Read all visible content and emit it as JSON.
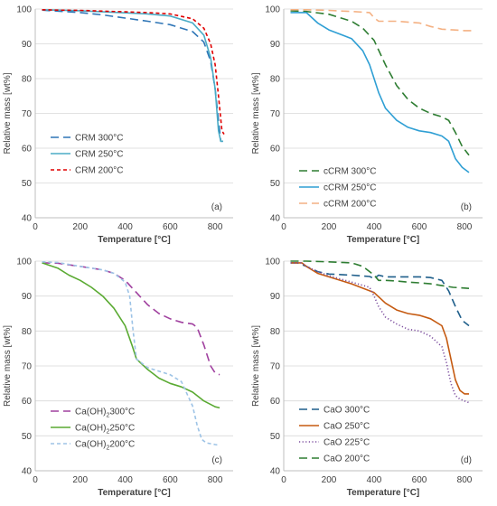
{
  "chart_data": [
    {
      "type": "line",
      "panel_label": "(a)",
      "xlabel": "Temperature [°C]",
      "ylabel": "Relative mass [wt%]",
      "xlim": [
        0,
        880
      ],
      "ylim": [
        40,
        100
      ],
      "xticks": [
        0,
        200,
        400,
        600,
        800
      ],
      "yticks": [
        40,
        50,
        60,
        70,
        80,
        90,
        100
      ],
      "grid": "horizontal",
      "legend_position": "bottom-left",
      "series": [
        {
          "name": "CRM 300°C",
          "color": "#2e75b6",
          "dash": "long-dash",
          "x": [
            30,
            100,
            200,
            300,
            400,
            500,
            600,
            700,
            750,
            780,
            800,
            815,
            825,
            835
          ],
          "y": [
            99.7,
            99.4,
            99.0,
            98.3,
            97.4,
            96.5,
            95.5,
            93.5,
            90.5,
            85,
            77,
            68,
            62,
            62
          ]
        },
        {
          "name": "CRM 250°C",
          "color": "#4bacc6",
          "dash": "solid",
          "x": [
            30,
            100,
            200,
            300,
            400,
            500,
            600,
            700,
            750,
            780,
            800,
            815,
            825,
            835
          ],
          "y": [
            99.8,
            99.7,
            99.5,
            99.2,
            98.9,
            98.6,
            98.0,
            96.0,
            92.5,
            86,
            77,
            65,
            62,
            62
          ]
        },
        {
          "name": "CRM 200°C",
          "color": "#e00000",
          "dash": "short-dash",
          "x": [
            30,
            100,
            200,
            300,
            400,
            500,
            600,
            700,
            750,
            780,
            800,
            815,
            830,
            840
          ],
          "y": [
            99.8,
            99.7,
            99.6,
            99.4,
            99.2,
            99.0,
            98.6,
            97.2,
            94.5,
            90,
            84,
            75,
            65,
            64
          ]
        }
      ]
    },
    {
      "type": "line",
      "panel_label": "(b)",
      "xlabel": "Temperature [°C]",
      "ylabel": "Relative mass [wt%]",
      "xlim": [
        0,
        880
      ],
      "ylim": [
        40,
        100
      ],
      "xticks": [
        0,
        200,
        400,
        600,
        800
      ],
      "yticks": [
        40,
        50,
        60,
        70,
        80,
        90,
        100
      ],
      "grid": "horizontal",
      "legend_position": "bottom-left",
      "series": [
        {
          "name": "cCRM 300°C",
          "color": "#2e7d32",
          "dash": "long-dash",
          "x": [
            30,
            100,
            200,
            300,
            350,
            400,
            450,
            500,
            550,
            600,
            650,
            700,
            730,
            760,
            790,
            820
          ],
          "y": [
            99.5,
            99.3,
            98.5,
            96.5,
            94.5,
            91,
            84,
            78,
            74,
            71.5,
            70,
            69,
            68,
            64.5,
            60.5,
            58
          ]
        },
        {
          "name": "cCRM 250°C",
          "color": "#2f9fd4",
          "dash": "solid",
          "x": [
            30,
            100,
            150,
            200,
            300,
            350,
            380,
            400,
            420,
            450,
            500,
            550,
            600,
            650,
            700,
            730,
            760,
            790,
            820
          ],
          "y": [
            99,
            99,
            96,
            94,
            91.5,
            88,
            84,
            80,
            76,
            71.5,
            68,
            66,
            65,
            64.5,
            63.5,
            62,
            57,
            54.5,
            53
          ]
        },
        {
          "name": "cCRM 200°C",
          "color": "#f4b183",
          "dash": "long-dash",
          "x": [
            30,
            100,
            200,
            300,
            380,
            400,
            420,
            500,
            600,
            650,
            700,
            750,
            800,
            830
          ],
          "y": [
            99.8,
            99.8,
            99.6,
            99.3,
            99.0,
            97.5,
            96.5,
            96.5,
            96,
            95,
            94.2,
            94,
            93.8,
            93.8
          ]
        }
      ]
    },
    {
      "type": "line",
      "panel_label": "(c)",
      "xlabel": "Temperature [°C]",
      "ylabel": "Relative mass [wt%]",
      "xlim": [
        0,
        880
      ],
      "ylim": [
        40,
        100
      ],
      "xticks": [
        0,
        200,
        400,
        600,
        800
      ],
      "yticks": [
        40,
        50,
        60,
        70,
        80,
        90,
        100
      ],
      "grid": "horizontal",
      "legend_position": "bottom-left",
      "series": [
        {
          "name": "Ca(OH)",
          "name_sub": "2",
          "name_suffix": "300°C",
          "color": "#a0409f",
          "dash": "long-dash",
          "x": [
            30,
            100,
            200,
            300,
            350,
            400,
            450,
            500,
            550,
            600,
            650,
            700,
            720,
            750,
            780,
            800,
            820
          ],
          "y": [
            99.5,
            99.4,
            98.5,
            97.5,
            96.5,
            94.5,
            91,
            87.5,
            85,
            83.5,
            82.5,
            82,
            81,
            76,
            70,
            68,
            67.5
          ]
        },
        {
          "name": "Ca(OH)",
          "name_sub": "2",
          "name_suffix": "250°C",
          "color": "#5aaa32",
          "dash": "solid",
          "x": [
            30,
            100,
            150,
            200,
            250,
            300,
            350,
            400,
            430,
            450,
            500,
            550,
            600,
            650,
            700,
            750,
            800,
            820
          ],
          "y": [
            99.5,
            98,
            96,
            94.5,
            92.5,
            90,
            86.5,
            81.5,
            76,
            72,
            69,
            66.5,
            65,
            64,
            62.5,
            60,
            58.3,
            58
          ]
        },
        {
          "name": "Ca(OH)",
          "name_sub": "2",
          "name_suffix": "200°C",
          "color": "#9dc3e6",
          "dash": "short-dash",
          "x": [
            30,
            100,
            200,
            300,
            350,
            400,
            420,
            435,
            450,
            500,
            550,
            600,
            650,
            700,
            720,
            740,
            760,
            800,
            820
          ],
          "y": [
            99.8,
            99.6,
            98.5,
            97.5,
            96.5,
            94,
            90,
            80,
            72,
            69.5,
            68.5,
            67.5,
            65.5,
            58.5,
            53,
            49,
            48,
            47.5,
            47.3
          ]
        }
      ]
    },
    {
      "type": "line",
      "panel_label": "(d)",
      "xlabel": "Temperature [°C]",
      "ylabel": "Relative mass [wt%]",
      "xlim": [
        0,
        880
      ],
      "ylim": [
        40,
        100
      ],
      "xticks": [
        0,
        200,
        400,
        600,
        800
      ],
      "yticks": [
        40,
        50,
        60,
        70,
        80,
        90,
        100
      ],
      "grid": "horizontal",
      "legend_position": "bottom-left",
      "series": [
        {
          "name": "CaO 300°C",
          "color": "#1f5f8b",
          "dash": "long-dash",
          "x": [
            30,
            60,
            100,
            150,
            200,
            300,
            380,
            400,
            420,
            450,
            500,
            600,
            650,
            700,
            730,
            760,
            790,
            820
          ],
          "y": [
            99.5,
            99.5,
            98.5,
            97,
            96.3,
            96,
            95.6,
            95,
            96,
            95.5,
            95.5,
            95.5,
            95.3,
            94.5,
            91.5,
            87,
            83,
            81.5
          ]
        },
        {
          "name": "CaO 250°C",
          "color": "#c55a11",
          "dash": "solid",
          "x": [
            30,
            80,
            100,
            150,
            200,
            300,
            400,
            450,
            500,
            550,
            600,
            650,
            700,
            720,
            740,
            760,
            780,
            800,
            820
          ],
          "y": [
            99.5,
            99.5,
            98.5,
            96.5,
            95.5,
            93.5,
            91,
            88,
            86,
            85,
            84.5,
            83.5,
            81.5,
            78,
            72,
            66,
            63,
            62,
            62
          ]
        },
        {
          "name": "CaO 225°C",
          "color": "#7c4d9e",
          "dash": "dotted",
          "x": [
            30,
            80,
            100,
            150,
            200,
            300,
            380,
            400,
            420,
            450,
            500,
            550,
            600,
            650,
            700,
            720,
            740,
            760,
            780,
            800,
            820
          ],
          "y": [
            99.5,
            99.5,
            98.5,
            97,
            95.8,
            94,
            92.5,
            90,
            87,
            84,
            82,
            80.5,
            80,
            78.5,
            75.5,
            71,
            65,
            61.5,
            60.5,
            60,
            59.5
          ]
        },
        {
          "name": "CaO 200°C",
          "color": "#2e7d32",
          "dash": "long-dash",
          "x": [
            30,
            100,
            200,
            300,
            350,
            400,
            420,
            450,
            500,
            550,
            600,
            650,
            700,
            750,
            800,
            820
          ],
          "y": [
            100,
            100,
            99.8,
            99.5,
            98.5,
            96,
            94.5,
            94.5,
            94.3,
            94,
            93.8,
            93.5,
            93,
            92.5,
            92.3,
            92.2
          ]
        }
      ]
    }
  ]
}
